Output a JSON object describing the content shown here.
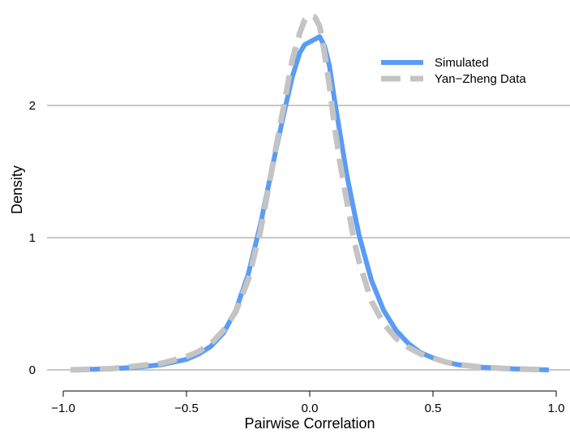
{
  "chart_data": {
    "type": "line",
    "title": "",
    "xlabel": "Pairwise Correlation",
    "ylabel": "Density",
    "xlim": [
      -1.0,
      1.0
    ],
    "ylim": [
      0,
      2.75
    ],
    "x_ticks": [
      -1.0,
      -0.5,
      0.0,
      0.5,
      1.0
    ],
    "x_tick_labels": [
      "−1.0",
      "−0.5",
      "0.0",
      "0.5",
      "1.0"
    ],
    "y_ticks": [
      0,
      1,
      2
    ],
    "y_tick_labels": [
      "0",
      "1",
      "2"
    ],
    "grid": "horizontal",
    "legend_position": "top-right",
    "series": [
      {
        "name": "Simulated",
        "color": "#5b9bf5",
        "style": "solid",
        "x": [
          -0.97,
          -0.8,
          -0.7,
          -0.6,
          -0.5,
          -0.45,
          -0.4,
          -0.35,
          -0.3,
          -0.25,
          -0.2,
          -0.15,
          -0.1,
          -0.07,
          -0.04,
          -0.02,
          0.0,
          0.02,
          0.04,
          0.06,
          0.08,
          0.1,
          0.12,
          0.15,
          0.18,
          0.2,
          0.25,
          0.3,
          0.35,
          0.4,
          0.45,
          0.5,
          0.55,
          0.6,
          0.7,
          0.8,
          0.97
        ],
        "y": [
          0.0,
          0.01,
          0.02,
          0.04,
          0.08,
          0.12,
          0.18,
          0.28,
          0.45,
          0.72,
          1.1,
          1.55,
          1.98,
          2.22,
          2.4,
          2.46,
          2.48,
          2.5,
          2.52,
          2.45,
          2.3,
          2.05,
          1.82,
          1.48,
          1.2,
          1.02,
          0.68,
          0.45,
          0.3,
          0.2,
          0.13,
          0.09,
          0.06,
          0.04,
          0.02,
          0.01,
          0.0
        ]
      },
      {
        "name": "Yan−Zheng Data",
        "color": "#c4c4c4",
        "style": "dashed",
        "x": [
          -0.97,
          -0.8,
          -0.7,
          -0.6,
          -0.5,
          -0.45,
          -0.4,
          -0.35,
          -0.3,
          -0.25,
          -0.2,
          -0.15,
          -0.1,
          -0.07,
          -0.04,
          -0.02,
          0.0,
          0.02,
          0.04,
          0.06,
          0.08,
          0.1,
          0.12,
          0.15,
          0.18,
          0.2,
          0.25,
          0.3,
          0.35,
          0.4,
          0.45,
          0.5,
          0.55,
          0.6,
          0.7,
          0.8,
          0.97
        ],
        "y": [
          0.0,
          0.01,
          0.03,
          0.05,
          0.1,
          0.14,
          0.2,
          0.3,
          0.44,
          0.68,
          1.05,
          1.55,
          2.05,
          2.35,
          2.55,
          2.65,
          2.68,
          2.67,
          2.6,
          2.4,
          2.15,
          1.85,
          1.6,
          1.28,
          0.98,
          0.82,
          0.52,
          0.35,
          0.24,
          0.17,
          0.12,
          0.09,
          0.06,
          0.04,
          0.02,
          0.01,
          0.0
        ]
      }
    ]
  }
}
